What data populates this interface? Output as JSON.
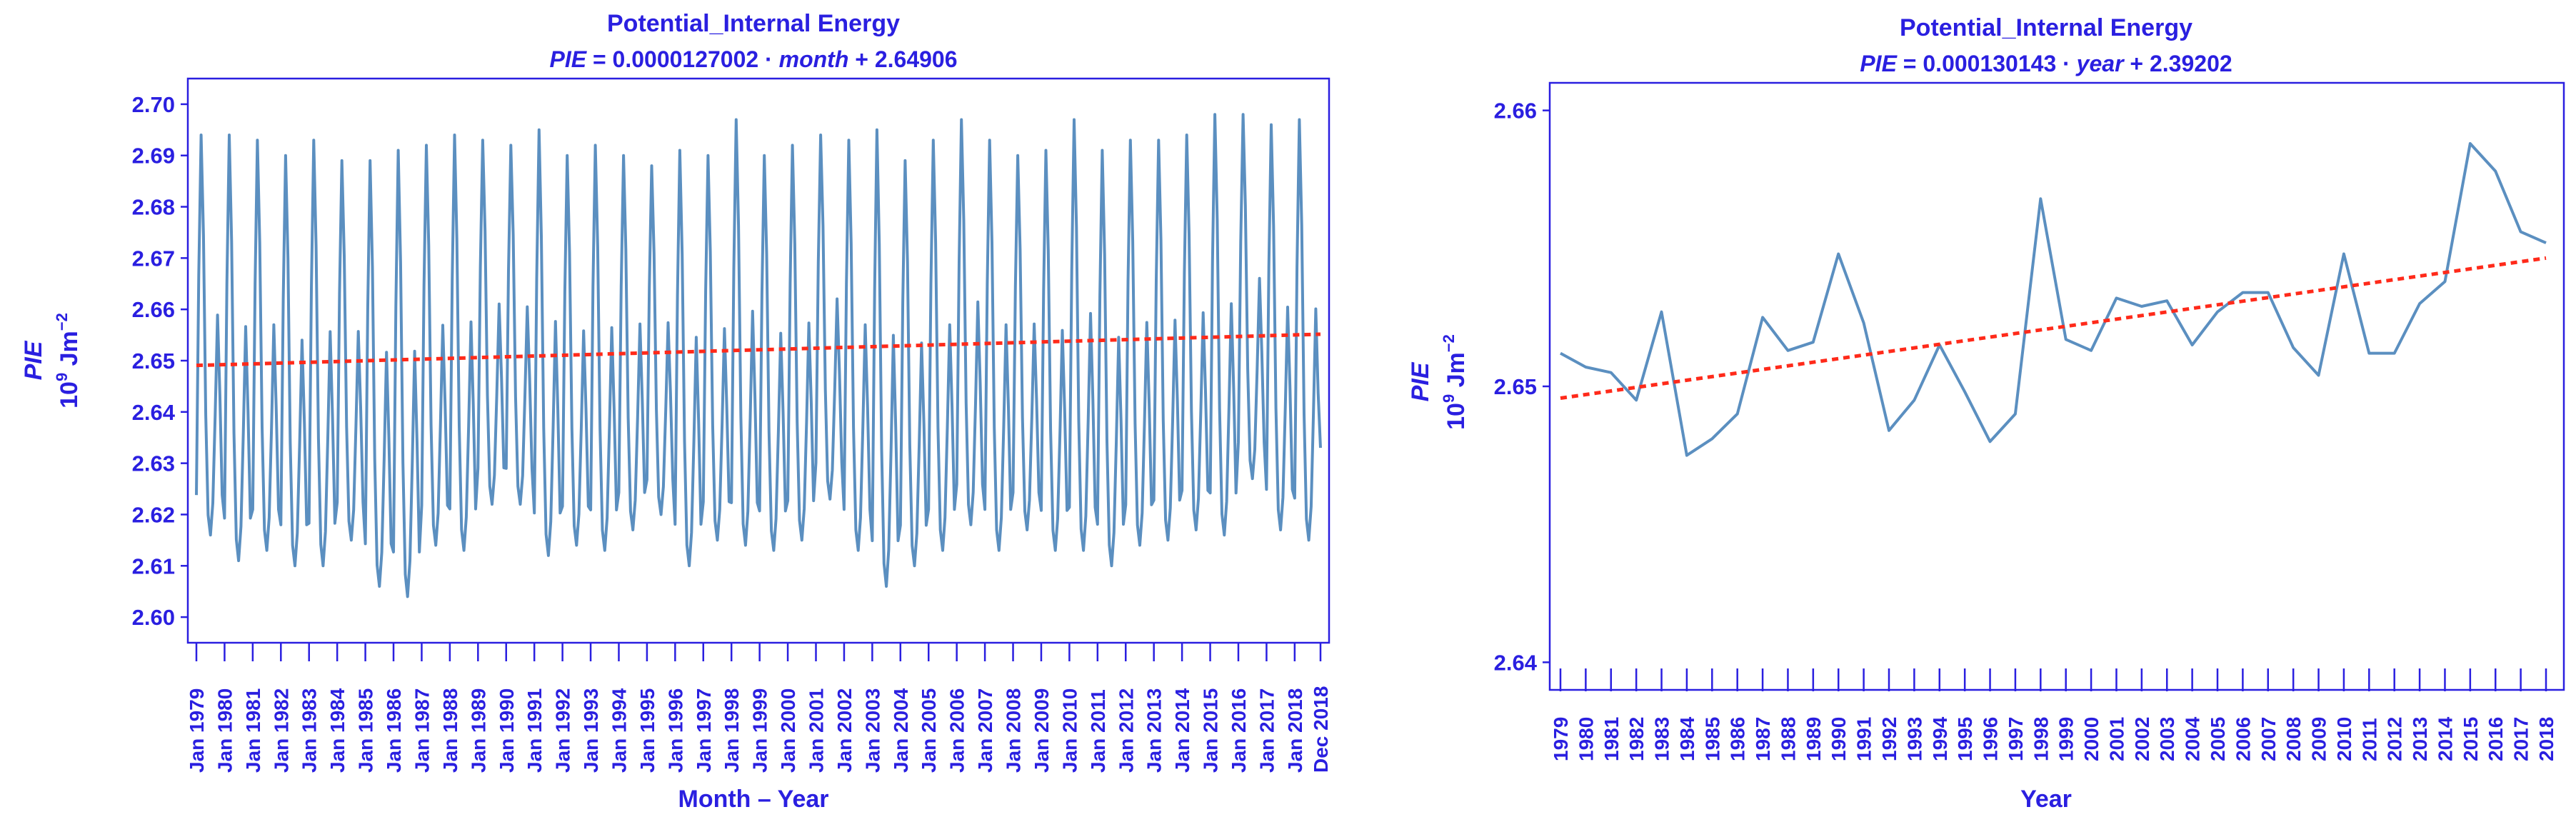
{
  "chart_data": [
    {
      "type": "line",
      "title": "Potential_Internal Energy",
      "subtitle": "PIE = 0.0000127002 · month + 2.64906",
      "equation": {
        "lhs": "PIE",
        "eq": " = 0.0000127002 · ",
        "var": "month",
        "rest": " + 2.64906"
      },
      "xlabel": "Month – Year",
      "ylabel": "PIE",
      "yunit": {
        "base": "10",
        "exp": "9",
        "mid": " Jm",
        "exp2": "−2"
      },
      "ylim": [
        2.595,
        2.705
      ],
      "yticks": [
        "2.60",
        "2.61",
        "2.62",
        "2.63",
        "2.64",
        "2.65",
        "2.66",
        "2.67",
        "2.68",
        "2.69",
        "2.70"
      ],
      "xtick_labels": [
        "Jan 1979",
        "Jan 1980",
        "Jan 1981",
        "Jan 1982",
        "Jan 1983",
        "Jan 1984",
        "Jan 1985",
        "Jan 1986",
        "Jan 1987",
        "Jan 1988",
        "Jan 1989",
        "Jan 1990",
        "Jan 1991",
        "Jan 1992",
        "Jan 1993",
        "Jan 1994",
        "Jan 1995",
        "Jan 1996",
        "Jan 1997",
        "Jan 1998",
        "Jan 1999",
        "Jan 2000",
        "Jan 2001",
        "Jan 2002",
        "Jan 2003",
        "Jan 2004",
        "Jan 2005",
        "Jan 2006",
        "Jan 2007",
        "Jan 2008",
        "Jan 2009",
        "Jan 2010",
        "Jan 2011",
        "Jan 2012",
        "Jan 2013",
        "Jan 2014",
        "Jan 2015",
        "Jan 2016",
        "Jan 2017",
        "Jan 2018",
        "Dec 2018"
      ],
      "annual_max": [
        2.694,
        2.694,
        2.693,
        2.69,
        2.693,
        2.689,
        2.689,
        2.691,
        2.692,
        2.694,
        2.693,
        2.692,
        2.695,
        2.69,
        2.692,
        2.69,
        2.688,
        2.691,
        2.69,
        2.697,
        2.69,
        2.692,
        2.694,
        2.693,
        2.695,
        2.689,
        2.693,
        2.697,
        2.693,
        2.69,
        2.691,
        2.697,
        2.691,
        2.693,
        2.693,
        2.694,
        2.698,
        2.698,
        2.696,
        2.697
      ],
      "annual_min": [
        2.616,
        2.611,
        2.613,
        2.61,
        2.61,
        2.615,
        2.606,
        2.604,
        2.614,
        2.613,
        2.622,
        2.622,
        2.612,
        2.614,
        2.613,
        2.617,
        2.62,
        2.61,
        2.615,
        2.614,
        2.613,
        2.615,
        2.623,
        2.613,
        2.606,
        2.61,
        2.613,
        2.618,
        2.613,
        2.617,
        2.613,
        2.613,
        2.61,
        2.614,
        2.615,
        2.617,
        2.616,
        2.627,
        2.617,
        2.615
      ],
      "final_value": 2.633,
      "trend": {
        "slope_per_month": 1.27002e-05,
        "intercept": 2.64906
      },
      "grid": false
    },
    {
      "type": "line",
      "title": "Potential_Internal Energy",
      "subtitle": "PIE = 0.000130143 · year + 2.39202",
      "equation": {
        "lhs": "PIE",
        "eq": " = 0.000130143 · ",
        "var": "year",
        "rest": " + 2.39202"
      },
      "xlabel": "Year",
      "ylabel": "PIE",
      "yunit": {
        "base": "10",
        "exp": "9",
        "mid": " Jm",
        "exp2": "−2"
      },
      "ylim": [
        2.639,
        2.661
      ],
      "yticks": [
        "2.64",
        "2.65",
        "2.66"
      ],
      "x": [
        "1979",
        "1980",
        "1981",
        "1982",
        "1983",
        "1984",
        "1985",
        "1986",
        "1987",
        "1988",
        "1989",
        "1990",
        "1991",
        "1992",
        "1993",
        "1994",
        "1995",
        "1996",
        "1997",
        "1998",
        "1999",
        "2000",
        "2001",
        "2002",
        "2003",
        "2004",
        "2005",
        "2006",
        "2007",
        "2008",
        "2009",
        "2010",
        "2011",
        "2012",
        "2013",
        "2014",
        "2015",
        "2016",
        "2017",
        "2018"
      ],
      "values": [
        2.6512,
        2.6507,
        2.6505,
        2.6495,
        2.6527,
        2.6475,
        2.6481,
        2.649,
        2.6525,
        2.6513,
        2.6516,
        2.6548,
        2.6523,
        2.6484,
        2.6495,
        2.6515,
        2.6498,
        2.648,
        2.649,
        2.6568,
        2.6517,
        2.6513,
        2.6532,
        2.6529,
        2.6531,
        2.6515,
        2.6527,
        2.6534,
        2.6534,
        2.6514,
        2.6504,
        2.6548,
        2.6512,
        2.6512,
        2.653,
        2.6538,
        2.6588,
        2.6578,
        2.6556,
        2.6552
      ],
      "trend": {
        "slope_per_year": 0.000130143,
        "intercept": 2.39202
      },
      "grid": false
    }
  ]
}
